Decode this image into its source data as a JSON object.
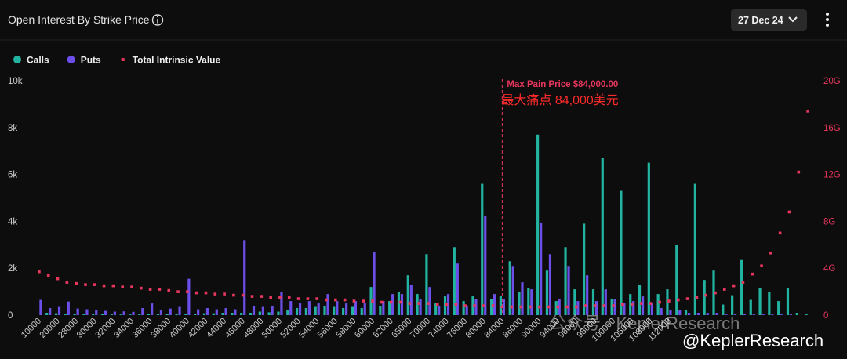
{
  "header": {
    "title": "Open Interest By Strike Price",
    "date_select": "27 Dec 24"
  },
  "watermarks": [
    "公众号 · KeplerResearch",
    "@KeplerResearch"
  ],
  "chart_data": {
    "type": "bar",
    "max_pain": 84000,
    "annotations": [
      "Max Pain Price $84,000.00",
      "最大痛点 84,000美元"
    ],
    "categories": [
      "10000",
      null,
      "20000",
      null,
      "28000",
      null,
      "30000",
      null,
      "32000",
      null,
      "34000",
      null,
      "36000",
      null,
      "38000",
      null,
      "40000",
      null,
      "42000",
      null,
      "44000",
      null,
      "46000",
      null,
      "48000",
      null,
      "50000",
      null,
      "52000",
      null,
      "54000",
      null,
      "56000",
      null,
      "58000",
      null,
      "60000",
      null,
      "62000",
      null,
      "65000",
      null,
      "70000",
      null,
      "74000",
      null,
      "76000",
      null,
      "80000",
      null,
      "84000",
      null,
      "86000",
      null,
      "90000",
      null,
      "94000",
      null,
      "96000",
      null,
      "98000",
      null,
      "100000",
      null,
      "105000",
      null,
      "108000",
      null,
      "112000",
      null,
      null,
      null,
      null,
      null,
      null,
      null,
      null,
      null,
      null,
      null,
      null,
      null,
      null,
      null
    ],
    "series": [
      {
        "name": "Calls",
        "color": "#22b3a1",
        "values": [
          0,
          100,
          80,
          50,
          50,
          50,
          40,
          40,
          30,
          30,
          30,
          40,
          40,
          40,
          50,
          50,
          60,
          60,
          80,
          80,
          100,
          100,
          100,
          100,
          150,
          120,
          150,
          200,
          300,
          300,
          350,
          400,
          350,
          300,
          350,
          300,
          1200,
          400,
          600,
          1000,
          1700,
          900,
          2600,
          500,
          800,
          2900,
          600,
          800,
          5600,
          700,
          800,
          2300,
          1000,
          1150,
          7700,
          1900,
          600,
          2900,
          1100,
          3900,
          1100,
          6700,
          700,
          5300,
          900,
          1300,
          6500,
          900,
          1100,
          3000,
          200,
          5600,
          1500,
          1900,
          450,
          850,
          2350,
          650,
          1150,
          1000,
          600,
          1150,
          100,
          50
        ]
      },
      {
        "name": "Puts",
        "color": "#6b4fe8",
        "values": [
          650,
          300,
          350,
          580,
          280,
          250,
          200,
          180,
          150,
          160,
          140,
          300,
          500,
          200,
          280,
          350,
          1550,
          250,
          300,
          250,
          300,
          250,
          3200,
          400,
          350,
          400,
          1000,
          600,
          500,
          600,
          500,
          900,
          600,
          500,
          600,
          500,
          2700,
          600,
          900,
          900,
          1300,
          700,
          1200,
          400,
          900,
          2200,
          400,
          700,
          4250,
          900,
          700,
          2100,
          1400,
          1100,
          3950,
          2600,
          700,
          2100,
          600,
          1700,
          600,
          1100,
          700,
          500,
          600,
          800,
          500,
          300,
          200,
          200,
          100,
          100,
          100,
          100,
          50,
          50,
          50,
          50,
          50,
          30,
          30,
          30,
          0,
          0
        ]
      },
      {
        "name": "Total Intrinsic Value",
        "color": "#e8365d",
        "axis": "y2",
        "values": [
          3.7,
          3.4,
          3.1,
          2.8,
          2.7,
          2.6,
          2.6,
          2.5,
          2.5,
          2.4,
          2.4,
          2.3,
          2.2,
          2.2,
          2.1,
          2.0,
          2.0,
          1.9,
          1.9,
          1.8,
          1.8,
          1.7,
          1.7,
          1.6,
          1.6,
          1.5,
          1.5,
          1.5,
          1.4,
          1.4,
          1.4,
          1.3,
          1.3,
          1.3,
          1.2,
          1.2,
          1.2,
          1.1,
          1.1,
          1.1,
          1.0,
          1.0,
          1.0,
          0.9,
          0.9,
          0.9,
          0.8,
          0.8,
          0.8,
          0.8,
          0.7,
          0.7,
          0.7,
          0.7,
          0.7,
          0.7,
          0.7,
          0.7,
          0.7,
          0.8,
          0.8,
          0.8,
          0.8,
          0.9,
          0.9,
          1.0,
          1.0,
          1.1,
          1.2,
          1.3,
          1.4,
          1.5,
          1.7,
          1.9,
          2.2,
          2.5,
          2.8,
          3.5,
          4.2,
          5.3,
          7.0,
          8.8,
          12.2,
          17.4
        ]
      }
    ],
    "ylim": [
      0,
      10000
    ],
    "yticks": [
      {
        "value": 0,
        "label": "0"
      },
      {
        "value": 2000,
        "label": "2k"
      },
      {
        "value": 4000,
        "label": "4k"
      },
      {
        "value": 6000,
        "label": "6k"
      },
      {
        "value": 8000,
        "label": "8k"
      },
      {
        "value": 10000,
        "label": "10k"
      }
    ],
    "y2lim": [
      0,
      20
    ],
    "y2ticks": [
      {
        "value": 0,
        "label": "0"
      },
      {
        "value": 4,
        "label": "4G"
      },
      {
        "value": 8,
        "label": "8G"
      },
      {
        "value": 12,
        "label": "12G"
      },
      {
        "value": 16,
        "label": "16G"
      },
      {
        "value": 20,
        "label": "20G"
      }
    ]
  }
}
